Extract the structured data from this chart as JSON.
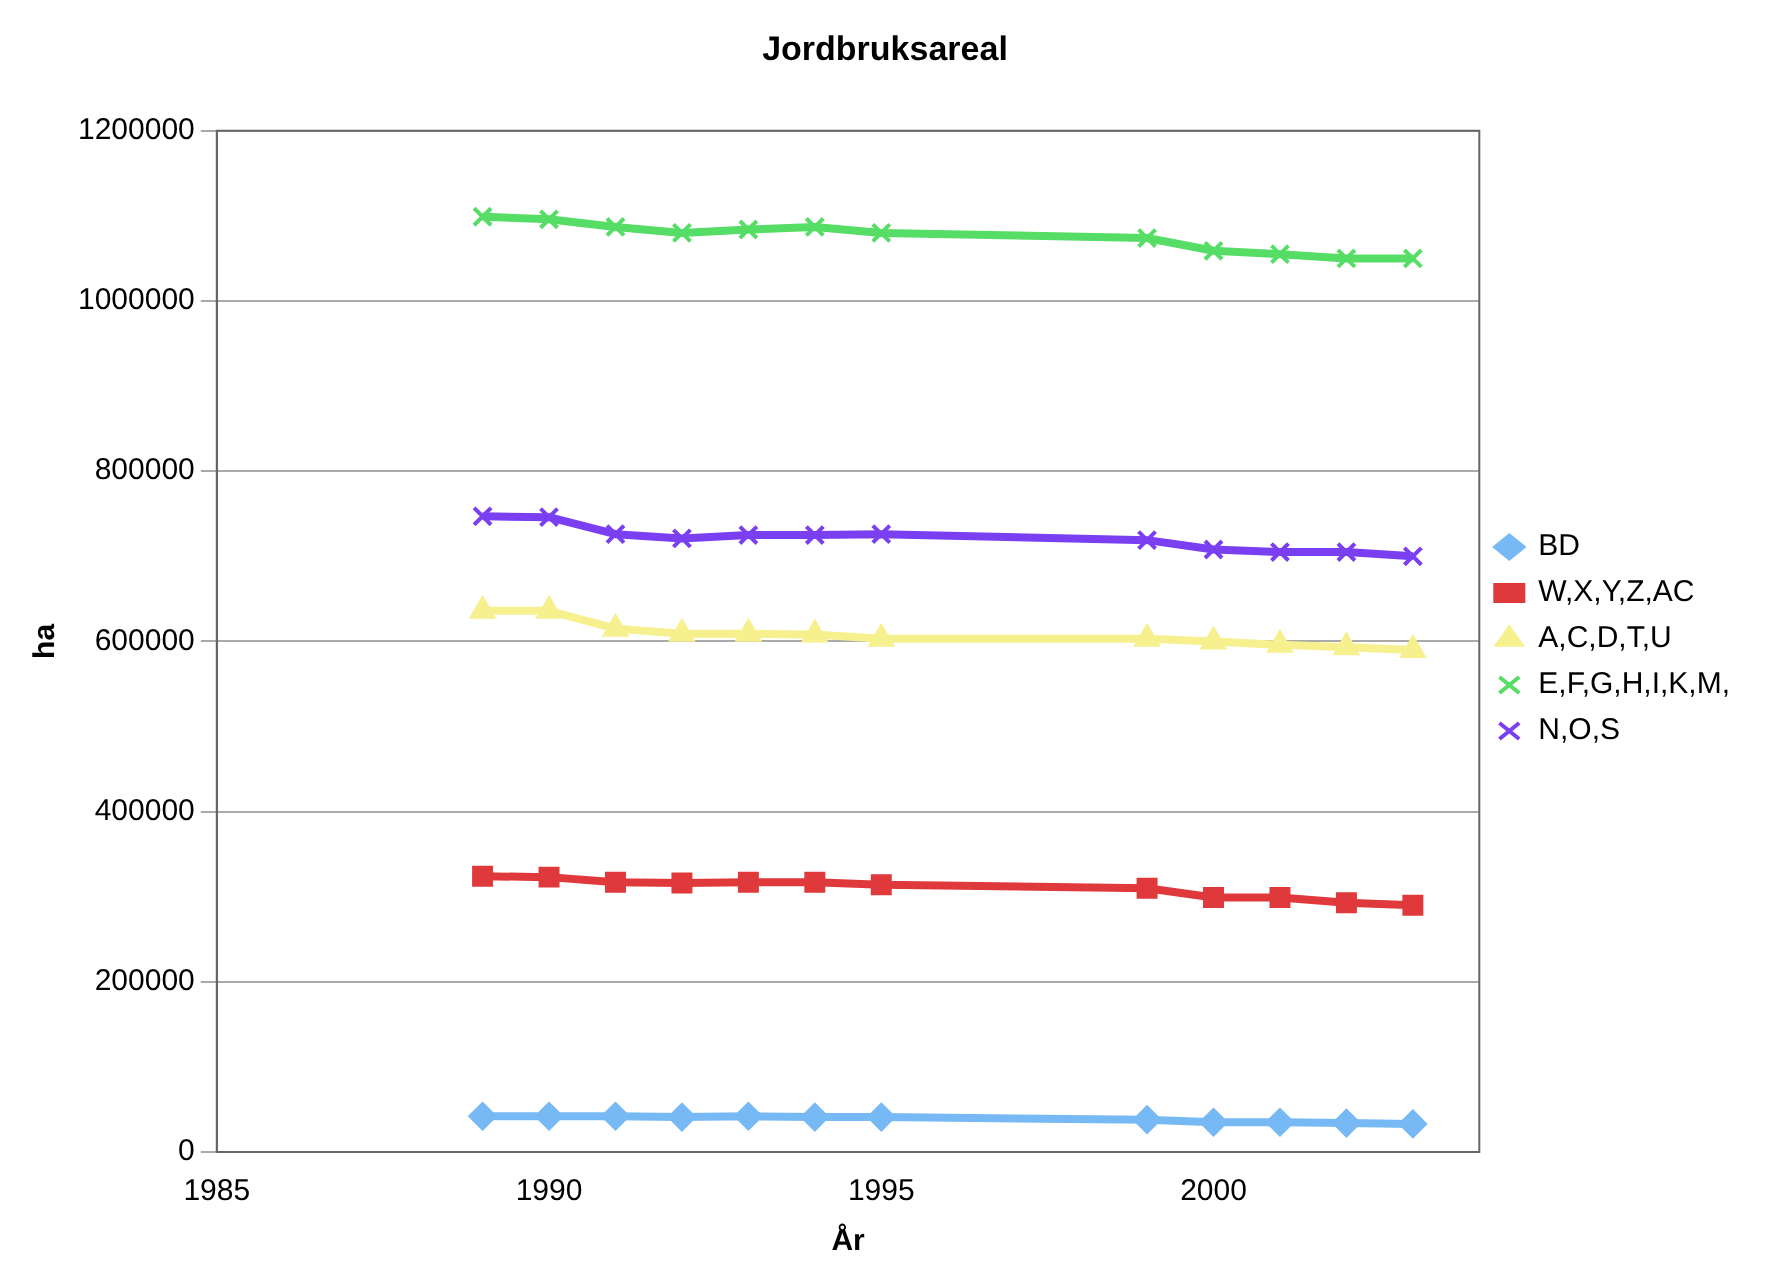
{
  "chart_data": {
    "type": "line",
    "title": "Jordbruksareal",
    "xlabel": "År",
    "ylabel": "ha",
    "x": [
      1989,
      1990,
      1991,
      1992,
      1993,
      1994,
      1995,
      1999,
      2000,
      2001,
      2002,
      2003
    ],
    "series": [
      {
        "name": "BD",
        "color": "#77b9f5",
        "marker": "diamond",
        "values": [
          42000,
          42000,
          42000,
          41000,
          42000,
          41000,
          41000,
          38000,
          35000,
          35000,
          34000,
          33000
        ]
      },
      {
        "name": "W,X,Y,Z,AC",
        "color": "#e0393b",
        "marker": "square",
        "values": [
          324000,
          323000,
          317000,
          316000,
          317000,
          317000,
          314000,
          310000,
          299000,
          299000,
          293000,
          290000
        ]
      },
      {
        "name": "A,C,D,T,U",
        "color": "#f7f08e",
        "marker": "triangle",
        "values": [
          636000,
          636000,
          615000,
          609000,
          609000,
          608000,
          603000,
          603000,
          600000,
          596000,
          593000,
          590000
        ]
      },
      {
        "name": "E,F,G,H,I,K,M,",
        "color": "#55dd66",
        "marker": "cross",
        "values": [
          1099000,
          1096000,
          1087000,
          1080000,
          1084000,
          1087000,
          1080000,
          1074000,
          1059000,
          1055000,
          1050000,
          1050000
        ]
      },
      {
        "name": "N,O,S",
        "color": "#7b3ff2",
        "marker": "cross",
        "values": [
          747000,
          746000,
          726000,
          721000,
          725000,
          725000,
          726000,
          719000,
          708000,
          705000,
          705000,
          700000
        ]
      }
    ],
    "xlim": [
      1985,
      2004
    ],
    "xticks": [
      1985,
      1990,
      1995,
      2000
    ],
    "ylim": [
      0,
      1200000
    ],
    "yticks": [
      0,
      200000,
      400000,
      600000,
      800000,
      1000000,
      1200000
    ],
    "grid": "y",
    "legend": "right"
  }
}
